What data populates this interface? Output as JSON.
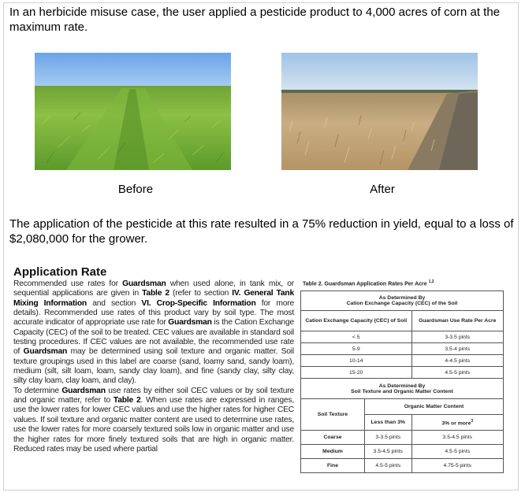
{
  "intro_text": "In an herbicide misuse case, the user applied a pesticide product to 4,000 acres of corn at the maximum rate.",
  "photos": {
    "before_caption": "Before",
    "after_caption": "After"
  },
  "result_text": "The application of the pesticide at this rate resulted in a 75% reduction in yield, equal to a loss of $2,080,000 for the grower.",
  "label": {
    "title": "Application Rate",
    "p1": {
      "s1": "Recommended use rates for ",
      "b1": "Guardsman",
      "s2": " when used alone, in tank mix, or sequential applications are given in ",
      "b2": "Table 2",
      "s3": " (refer to section ",
      "b3": "IV. General Tank Mixing Information",
      "s4": " and section ",
      "b4": "VI. Crop-Specific Information",
      "s5": " for more details). Recommended use rates of this product vary by soil type. The most accurate indicator of appropriate use rate for ",
      "b5": "Guardsman",
      "s6": " is the Cation Exchange Capacity (CEC) of the soil to be treated. CEC values are available in standard soil testing procedures. If CEC values are not available, the recommended use rate of ",
      "b6": "Guardsman",
      "s7": " may be determined using soil texture and organic matter. Soil texture groupings used in this label are coarse (sand, loamy sand, sandy loam), medium (silt, silt loam, loam, sandy clay loam), and fine (sandy clay, silty clay, silty clay loam, clay loam, and clay)."
    },
    "p2": {
      "s1": "To determine ",
      "b1": "Guardsman",
      "s2": " use rates by either soil CEC values or by soil texture and organic matter, refer to ",
      "b2": "Table 2",
      "s3": ". When use rates are expressed in ranges, use the lower rates for lower CEC values and use the higher rates for higher CEC values. If soil texture and organic matter content are used to determine use rates, use the lower rates for more coarsely textured soils low in organic matter and use the higher rates for more finely textured soils that are high in organic matter. Reduced rates may be used where partial"
    }
  },
  "table": {
    "title": "Table 2. Guardsman Application Rates Per Acre",
    "title_sup": "1,2",
    "cec_heading_1": "As Determined By",
    "cec_heading_2": "Cation Exchange Capacity (CEC) of the Soil",
    "cec_col1": "Cation Exchange Capacity (CEC) of Soil",
    "cec_col2": "Guardsman Use Rate Per Acre",
    "cec_rows": [
      {
        "cec": "< 5",
        "rate": "3-3.5 pints"
      },
      {
        "cec": "5-9",
        "rate": "3.5-4 pints"
      },
      {
        "cec": "10-14",
        "rate": "4-4.5 pints"
      },
      {
        "cec": "15-20",
        "rate": "4.5-5 pints"
      }
    ],
    "tex_heading_1": "As Determined By",
    "tex_heading_2": "Soil Texture and Organic Matter Content",
    "soil_texture": "Soil Texture",
    "om_content": "Organic Matter Content",
    "om_low": "Less than 3%",
    "om_high": "3% or more",
    "om_high_sup": "3",
    "tex_rows": [
      {
        "soil": "Coarse",
        "low": "3-3.5 pints",
        "high": "3.5-4.5 pints"
      },
      {
        "soil": "Medium",
        "low": "3.5-4.5 pints",
        "high": "4.5-5 pints"
      },
      {
        "soil": "Fine",
        "low": "4.5-5 pints",
        "high": "4.75-5 pints"
      }
    ]
  }
}
